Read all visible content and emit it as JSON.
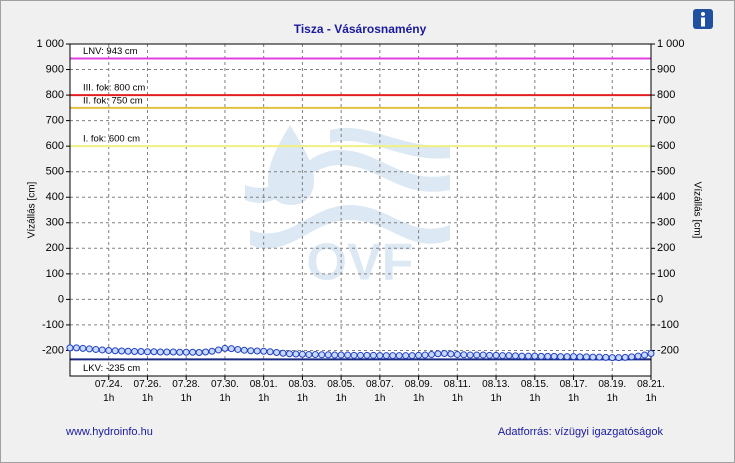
{
  "chart_data": {
    "type": "line",
    "title": "Tisza - Vásárosnamény",
    "y_label": "Vízállás [cm]",
    "watermark": "OVF",
    "footer_left": "www.hydroinfo.hu",
    "footer_right": "Adatforrás: vízügyi igazgatóságok",
    "xlim": [
      "07.22. 1h",
      "08.21. 1h"
    ],
    "xticks": [
      "07.24. 1h",
      "07.26. 1h",
      "07.28. 1h",
      "07.30. 1h",
      "08.01. 1h",
      "08.03. 1h",
      "08.05. 1h",
      "08.07. 1h",
      "08.09. 1h",
      "08.11. 1h",
      "08.13. 1h",
      "08.15. 1h",
      "08.17. 1h",
      "08.19. 1h",
      "08.21. 1h"
    ],
    "ylim": [
      -300,
      1000
    ],
    "yticks": [
      -200,
      -100,
      0,
      100,
      200,
      300,
      400,
      500,
      600,
      700,
      800,
      900,
      {
        "value": 1000,
        "label": "1 000"
      }
    ],
    "y2lim": [
      -300,
      1000
    ],
    "y2ticks": [
      -200,
      -100,
      0,
      100,
      200,
      300,
      400,
      500,
      600,
      700,
      800,
      900,
      {
        "value": 1000,
        "label": "1 000"
      }
    ],
    "grid": true,
    "reference_lines": [
      {
        "label": "LNV: 943 cm",
        "value": 943,
        "color": "#e040e0"
      },
      {
        "label": "III. fok: 800 cm",
        "value": 800,
        "color": "#e02020"
      },
      {
        "label": "II. fok: 750 cm",
        "value": 750,
        "color": "#e0c040"
      },
      {
        "label": "I. fok: 600 cm",
        "value": 600,
        "color": "#f0f080"
      },
      {
        "label": "LKV: -235 cm",
        "value": -235,
        "color": "#1a2a80"
      }
    ],
    "x": [
      "07.22. 1h",
      "07.22. 9h",
      "07.22. 17h",
      "07.23. 1h",
      "07.23. 9h",
      "07.23. 17h",
      "07.24. 1h",
      "07.24. 9h",
      "07.24. 17h",
      "07.25. 1h",
      "07.25. 9h",
      "07.25. 17h",
      "07.26. 1h",
      "07.26. 9h",
      "07.26. 17h",
      "07.27. 1h",
      "07.27. 9h",
      "07.27. 17h",
      "07.28. 1h",
      "07.28. 9h",
      "07.28. 17h",
      "07.29. 1h",
      "07.29. 9h",
      "07.29. 17h",
      "07.30. 1h",
      "07.30. 9h",
      "07.30. 17h",
      "07.31. 1h",
      "07.31. 9h",
      "07.31. 17h",
      "08.01. 1h",
      "08.01. 9h",
      "08.01. 17h",
      "08.02. 1h",
      "08.02. 9h",
      "08.02. 17h",
      "08.03. 1h",
      "08.03. 9h",
      "08.03. 17h",
      "08.04. 1h",
      "08.04. 9h",
      "08.04. 17h",
      "08.05. 1h",
      "08.05. 9h",
      "08.05. 17h",
      "08.06. 1h",
      "08.06. 9h",
      "08.06. 17h",
      "08.07. 1h",
      "08.07. 9h",
      "08.07. 17h",
      "08.08. 1h",
      "08.08. 9h",
      "08.08. 17h",
      "08.09. 1h",
      "08.09. 9h",
      "08.09. 17h",
      "08.10. 1h",
      "08.10. 9h",
      "08.10. 17h",
      "08.11. 1h",
      "08.11. 9h",
      "08.11. 17h",
      "08.12. 1h",
      "08.12. 9h",
      "08.12. 17h",
      "08.13. 1h",
      "08.13. 9h",
      "08.13. 17h",
      "08.14. 1h",
      "08.14. 9h",
      "08.14. 17h",
      "08.15. 1h",
      "08.15. 9h",
      "08.15. 17h",
      "08.16. 1h",
      "08.16. 9h",
      "08.16. 17h",
      "08.17. 1h",
      "08.17. 9h",
      "08.17. 17h",
      "08.18. 1h",
      "08.18. 9h",
      "08.18. 17h",
      "08.19. 1h",
      "08.19. 9h",
      "08.19. 17h",
      "08.20. 1h",
      "08.20. 9h",
      "08.20. 17h",
      "08.21. 1h"
    ],
    "series": [
      {
        "color": "#2040c0",
        "values": [
          -190,
          -190,
          -192,
          -194,
          -196,
          -198,
          -200,
          -201,
          -202,
          -203,
          -204,
          -204,
          -205,
          -205,
          -206,
          -206,
          -206,
          -207,
          -207,
          -207,
          -208,
          -206,
          -203,
          -198,
          -192,
          -193,
          -196,
          -199,
          -201,
          -202,
          -203,
          -205,
          -208,
          -211,
          -213,
          -214,
          -215,
          -216,
          -216,
          -217,
          -217,
          -218,
          -218,
          -218,
          -219,
          -219,
          -219,
          -219,
          -220,
          -220,
          -220,
          -220,
          -220,
          -220,
          -219,
          -218,
          -216,
          -213,
          -212,
          -214,
          -216,
          -217,
          -218,
          -218,
          -218,
          -219,
          -219,
          -220,
          -220,
          -221,
          -222,
          -222,
          -222,
          -223,
          -223,
          -223,
          -224,
          -224,
          -224,
          -225,
          -225,
          -226,
          -226,
          -227,
          -228,
          -228,
          -227,
          -225,
          -222,
          -218,
          -212
        ]
      }
    ]
  }
}
